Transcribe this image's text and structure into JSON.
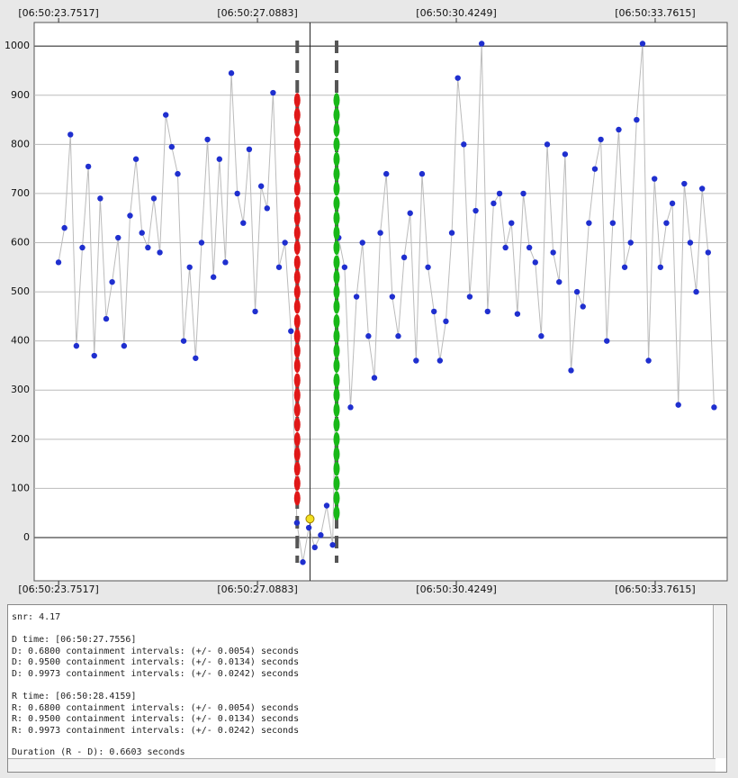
{
  "chart_data": {
    "type": "scatter",
    "xlim": [
      23.342,
      34.97
    ],
    "ylim": [
      -88,
      1048
    ],
    "xticks": [
      {
        "value": 23.7517,
        "label": "[06:50:23.7517]"
      },
      {
        "value": 27.0883,
        "label": "[06:50:27.0883]"
      },
      {
        "value": 30.4249,
        "label": "[06:50:30.4249]"
      },
      {
        "value": 33.7615,
        "label": "[06:50:33.7615]"
      }
    ],
    "yticks": [
      0,
      100,
      200,
      300,
      400,
      500,
      600,
      700,
      800,
      900,
      1000
    ],
    "grid": true,
    "d_line": 27.7556,
    "r_line": 28.4159,
    "center_line": 27.97,
    "series": [
      {
        "color": "#1f2fcf",
        "line_color": "#bbbbbb",
        "x": [
          23.75,
          23.85,
          23.95,
          24.05,
          24.15,
          24.25,
          24.35,
          24.45,
          24.55,
          24.65,
          24.75,
          24.85,
          24.95,
          25.05,
          25.15,
          25.25,
          25.35,
          25.45,
          25.55,
          25.65,
          25.75,
          25.85,
          25.95,
          26.05,
          26.15,
          26.25,
          26.35,
          26.45,
          26.55,
          26.65,
          26.75,
          26.85,
          26.95,
          27.05,
          27.15,
          27.25,
          27.35,
          27.45,
          27.55,
          27.65,
          27.75,
          27.85,
          27.95,
          28.05,
          28.15,
          28.25,
          28.35,
          28.45,
          28.55,
          28.65,
          28.75,
          28.85,
          28.95,
          29.05,
          29.15,
          29.25,
          29.35,
          29.45,
          29.55,
          29.65,
          29.75,
          29.85,
          29.95,
          30.05,
          30.15,
          30.25,
          30.35,
          30.45,
          30.55,
          30.65,
          30.75,
          30.85,
          30.95,
          31.05,
          31.15,
          31.25,
          31.35,
          31.45,
          31.55,
          31.65,
          31.75,
          31.85,
          31.95,
          32.05,
          32.15,
          32.25,
          32.35,
          32.45,
          32.55,
          32.65,
          32.75,
          32.85,
          32.95,
          33.05,
          33.15,
          33.25,
          33.35,
          33.45,
          33.55,
          33.65,
          33.75,
          33.85,
          33.95,
          34.05,
          34.15,
          34.25,
          34.35,
          34.45,
          34.55,
          34.65,
          34.75
        ],
        "values": [
          560,
          630,
          820,
          390,
          590,
          755,
          370,
          690,
          445,
          520,
          610,
          390,
          655,
          770,
          620,
          590,
          690,
          580,
          860,
          795,
          740,
          400,
          550,
          365,
          600,
          810,
          530,
          770,
          560,
          945,
          700,
          640,
          790,
          460,
          715,
          670,
          905,
          550,
          600,
          420,
          30,
          -50,
          20,
          -20,
          5,
          65,
          -15,
          610,
          550,
          265,
          490,
          600,
          410,
          325,
          620,
          740,
          490,
          410,
          570,
          660,
          360,
          740,
          550,
          460,
          360,
          440,
          620,
          935,
          800,
          490,
          665,
          1005,
          460,
          680,
          700,
          590,
          640,
          455,
          700,
          590,
          560,
          410,
          800,
          580,
          520,
          780,
          340,
          500,
          470,
          640,
          750,
          810,
          400,
          640,
          830,
          550,
          600,
          850,
          1005,
          360,
          730,
          550,
          640,
          680,
          270,
          720,
          600,
          500,
          710,
          580,
          265
        ]
      },
      {
        "color": "#e01818",
        "x": [
          27.7556,
          27.7556,
          27.7556,
          27.7556,
          27.7556,
          27.7556,
          27.7556,
          27.7556,
          27.7556,
          27.7556,
          27.7556,
          27.7556,
          27.7556,
          27.7556,
          27.7556,
          27.7556,
          27.7556,
          27.7556,
          27.7556,
          27.7556,
          27.7556,
          27.7556,
          27.7556,
          27.7556,
          27.7556,
          27.7556,
          27.7556,
          27.7556
        ],
        "values": [
          80,
          110,
          140,
          170,
          200,
          230,
          260,
          290,
          320,
          350,
          380,
          410,
          440,
          470,
          500,
          530,
          560,
          590,
          620,
          650,
          680,
          710,
          740,
          770,
          800,
          830,
          860,
          890
        ]
      },
      {
        "color": "#18b818",
        "x": [
          28.4159,
          28.4159,
          28.4159,
          28.4159,
          28.4159,
          28.4159,
          28.4159,
          28.4159,
          28.4159,
          28.4159,
          28.4159,
          28.4159,
          28.4159,
          28.4159,
          28.4159,
          28.4159,
          28.4159,
          28.4159,
          28.4159,
          28.4159,
          28.4159,
          28.4159,
          28.4159,
          28.4159,
          28.4159,
          28.4159,
          28.4159,
          28.4159,
          28.4159
        ],
        "values": [
          50,
          80,
          110,
          140,
          170,
          200,
          230,
          260,
          290,
          320,
          350,
          380,
          410,
          440,
          470,
          500,
          530,
          560,
          590,
          620,
          650,
          680,
          710,
          740,
          770,
          800,
          830,
          860,
          890
        ]
      },
      {
        "color": "#f2e020",
        "x": [
          27.97
        ],
        "values": [
          38
        ]
      }
    ]
  },
  "text_panel": {
    "snr": "snr: 4.17",
    "d_lines": [
      "D time: [06:50:27.7556]",
      "D: 0.6800 containment intervals: (+/- 0.0054) seconds",
      "D: 0.9500 containment intervals: (+/- 0.0134) seconds",
      "D: 0.9973 containment intervals: (+/- 0.0242) seconds"
    ],
    "r_lines": [
      "R time: [06:50:28.4159]",
      "R: 0.6800 containment intervals: (+/- 0.0054) seconds",
      "R: 0.9500 containment intervals: (+/- 0.0134) seconds",
      "R: 0.9973 containment intervals: (+/- 0.0242) seconds"
    ],
    "duration": "Duration (R - D): 0.6603 seconds"
  }
}
